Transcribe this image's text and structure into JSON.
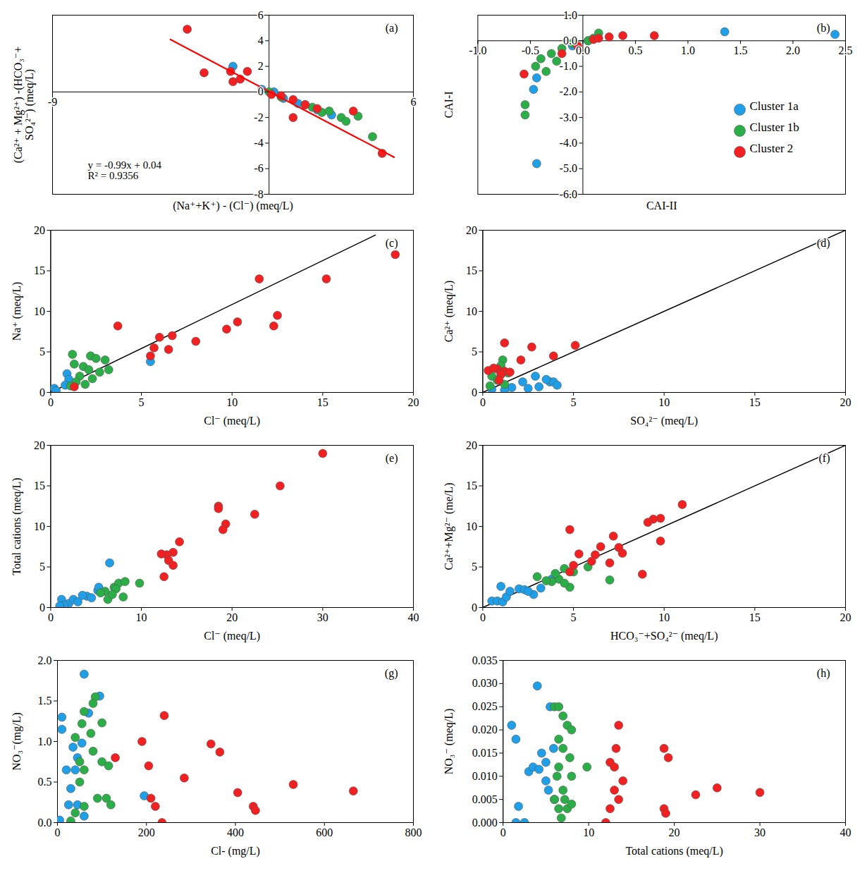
{
  "chart_data": [
    {
      "type": "scatter",
      "title": "(a)",
      "x_label": "(Na⁺+K⁺) - (Cl⁻) (meq/L)",
      "y_label": "(Ca²⁺ + Mg²⁺) -(HCO₃⁻+ SO₄²⁻) (meq/L)",
      "xlim": [
        -9,
        6
      ],
      "xticks": [
        -9,
        6
      ],
      "ylim": [
        -8,
        6
      ],
      "yticks": [
        -8,
        -6,
        -4,
        -2,
        0,
        2,
        4,
        6
      ],
      "equation": [
        "y = -0.99x + 0.04",
        "R² = 0.9356"
      ],
      "trendline": {
        "color": "#ff0000",
        "x": [
          -4.1,
          5.2
        ],
        "y": [
          4.1,
          -5.11
        ]
      },
      "series": [
        {
          "name": "Cluster 1a",
          "color": "#1e9fe8",
          "x": [
            -1.5,
            -0.3,
            0.2,
            0.6,
            1.2,
            2.0,
            2.6
          ],
          "y": [
            2.0,
            0.2,
            0.0,
            -0.5,
            -0.9,
            -1.4,
            -1.8
          ]
        },
        {
          "name": "Cluster 1b",
          "color": "#2bae48",
          "x": [
            0.0,
            0.5,
            1.5,
            1.8,
            2.2,
            2.5,
            3.0,
            3.2,
            3.7,
            4.3
          ],
          "y": [
            0.0,
            -0.4,
            -1.0,
            -1.2,
            -1.6,
            -1.5,
            -2.0,
            -2.3,
            -1.9,
            -3.5
          ]
        },
        {
          "name": "Cluster 2",
          "color": "#f22020",
          "x": [
            -3.4,
            -2.7,
            -1.6,
            -1.5,
            -1.2,
            -0.9,
            0.1,
            0.5,
            1.0,
            1.5,
            2.0,
            1.0,
            3.5,
            4.7
          ],
          "y": [
            4.9,
            1.5,
            1.6,
            0.8,
            1.0,
            1.6,
            -0.2,
            -0.3,
            -0.6,
            -1.0,
            -1.3,
            -2.0,
            -1.5,
            -4.8
          ]
        }
      ]
    },
    {
      "type": "scatter",
      "title": "(b)",
      "legend": "bottom-right",
      "x_label": "CAI-II",
      "y_label": "CAI-I",
      "xlim": [
        -1,
        2.5
      ],
      "xticks": [
        {
          "value": -1,
          "label": "-1.0"
        },
        {
          "value": -0.5,
          "label": "-0.5"
        },
        {
          "value": 0,
          "label": "0.0"
        },
        {
          "value": 0.5,
          "label": "0.5"
        },
        {
          "value": 1,
          "label": "1.0"
        },
        {
          "value": 1.5,
          "label": "1.5"
        },
        {
          "value": 2,
          "label": "2.0"
        },
        {
          "value": 2.5,
          "label": "2.5"
        }
      ],
      "ylim": [
        -6,
        1
      ],
      "yticks": [
        {
          "value": 1,
          "label": "1.0"
        },
        {
          "value": 0,
          "label": "0.0"
        },
        {
          "value": -1,
          "label": "-1.0"
        },
        {
          "value": -2,
          "label": "-2.0"
        },
        {
          "value": -3,
          "label": "-3.0"
        },
        {
          "value": -4,
          "label": "-4.0"
        },
        {
          "value": -5,
          "label": "-5.0"
        },
        {
          "value": -6,
          "label": "-6.0"
        }
      ],
      "series": [
        {
          "name": "Cluster 1a",
          "color": "#1e9fe8",
          "x": [
            1.35,
            2.4,
            -0.47,
            -0.44,
            -0.44,
            -0.1,
            0.05
          ],
          "y": [
            0.35,
            0.25,
            -1.9,
            -1.45,
            -4.8,
            -0.2,
            0.0
          ]
        },
        {
          "name": "Cluster 1b",
          "color": "#2bae48",
          "x": [
            -0.55,
            -0.55,
            -0.45,
            -0.4,
            -0.3,
            -0.2,
            -0.1,
            0.05,
            0.1,
            0.15,
            -0.35,
            -0.25
          ],
          "y": [
            -2.9,
            -2.5,
            -1.0,
            -0.7,
            -0.5,
            -0.3,
            -0.1,
            0.0,
            0.1,
            0.3,
            -1.2,
            -0.8
          ]
        },
        {
          "name": "Cluster 2",
          "color": "#f22020",
          "x": [
            -0.56,
            -0.2,
            -0.05,
            0.1,
            0.15,
            0.25,
            0.38,
            0.68
          ],
          "y": [
            -1.3,
            -0.5,
            -0.2,
            0.05,
            0.1,
            0.15,
            0.2,
            0.2
          ]
        }
      ]
    },
    {
      "type": "scatter",
      "title": "(c)",
      "x_label": "Cl⁻ (meq/L)",
      "y_label": "Na⁺ (meq/L)",
      "xlim": [
        0,
        20
      ],
      "xticks": [
        0,
        5,
        10,
        15,
        20
      ],
      "ylim": [
        0,
        20
      ],
      "yticks": [
        0,
        5,
        10,
        15,
        20
      ],
      "reference_line": {
        "x": [
          0,
          17.9
        ],
        "y": [
          0,
          19.4
        ]
      },
      "series": [
        {
          "name": "Cluster 1a",
          "color": "#1e9fe8",
          "x": [
            5.5,
            0.9,
            0.2,
            0.3,
            1.0,
            0.8
          ],
          "y": [
            3.8,
            2.3,
            0.5,
            0.2,
            1.6,
            0.9
          ]
        },
        {
          "name": "Cluster 1b",
          "color": "#2bae48",
          "x": [
            1.2,
            1.3,
            2.2,
            2.5,
            3.0,
            3.2,
            1.8,
            2.1,
            1.6,
            2.3,
            1.4,
            1.1,
            1.9,
            2.7
          ],
          "y": [
            4.7,
            3.5,
            4.5,
            4.2,
            4.0,
            2.8,
            3.2,
            2.8,
            2.0,
            1.7,
            1.3,
            0.8,
            1.0,
            2.5
          ]
        },
        {
          "name": "Cluster 2",
          "color": "#f22020",
          "x": [
            19,
            15.2,
            11.5,
            12.5,
            12.3,
            10.3,
            9.7,
            8,
            6.7,
            6,
            6.5,
            5.7,
            5.5,
            3.7,
            1.3
          ],
          "y": [
            17,
            14,
            14,
            9.5,
            8.2,
            8.7,
            7.8,
            6.3,
            7,
            6.8,
            5.3,
            5.5,
            4.5,
            8.2,
            0.7
          ]
        }
      ]
    },
    {
      "type": "scatter",
      "title": "(d)",
      "x_label": "SO₄²⁻ (meq/L)",
      "y_label": "Ca²⁺ (meq/L)",
      "xlim": [
        0,
        20
      ],
      "xticks": [
        0,
        5,
        10,
        15,
        20
      ],
      "ylim": [
        0,
        20
      ],
      "yticks": [
        0,
        5,
        10,
        15,
        20
      ],
      "reference_line": {
        "x": [
          0,
          20
        ],
        "y": [
          0,
          20
        ]
      },
      "series": [
        {
          "name": "Cluster 1a",
          "color": "#1e9fe8",
          "x": [
            1.6,
            2.2,
            2.9,
            3.1,
            3.7,
            3.9,
            4.1,
            2.5,
            1.2,
            0.5,
            3.5
          ],
          "y": [
            0.6,
            1.3,
            2.0,
            0.7,
            1.3,
            1.3,
            0.9,
            0.5,
            0.3,
            0.4,
            1.6
          ]
        },
        {
          "name": "Cluster 1b",
          "color": "#2bae48",
          "x": [
            1.1,
            1.0,
            0.5,
            0.8,
            1.2,
            0.4,
            1.4
          ],
          "y": [
            4.0,
            3.3,
            2.0,
            1.5,
            1.0,
            0.8,
            2.4
          ]
        },
        {
          "name": "Cluster 2",
          "color": "#f22020",
          "x": [
            1.2,
            2.7,
            3.9,
            5.1,
            0.3,
            0.8,
            1.2,
            1.0,
            1.5,
            2.1,
            0.6,
            0.9
          ],
          "y": [
            6.1,
            5.6,
            4.5,
            5.8,
            2.7,
            2.9,
            2.6,
            2.2,
            2.5,
            4.0,
            3.0,
            1.5
          ]
        }
      ]
    },
    {
      "type": "scatter",
      "title": "(e)",
      "x_label": "Cl⁻ (meq/L)",
      "y_label": "Total cations (meq/L)",
      "xlim": [
        0,
        40
      ],
      "xticks": [
        0,
        10,
        20,
        30,
        40
      ],
      "ylim": [
        0,
        20
      ],
      "yticks": [
        0,
        5,
        10,
        15,
        20
      ],
      "series": [
        {
          "name": "Cluster 1a",
          "color": "#1e9fe8",
          "x": [
            6.5,
            1.2,
            2.0,
            1.5,
            2.5,
            3.0,
            4.0,
            4.5,
            5.2,
            5.3,
            3.5,
            1.0
          ],
          "y": [
            5.5,
            1.0,
            0.5,
            0.3,
            1.0,
            0.7,
            1.4,
            1.2,
            2.1,
            2.5,
            1.5,
            0.2
          ]
        },
        {
          "name": "Cluster 1b",
          "color": "#2bae48",
          "x": [
            6.0,
            7.0,
            7.5,
            8.2,
            9.8,
            8.0,
            6.3,
            5.5,
            7.2,
            6.8
          ],
          "y": [
            2.0,
            2.5,
            3.0,
            3.2,
            3.0,
            1.3,
            1.0,
            1.8,
            2.3,
            1.6
          ]
        },
        {
          "name": "Cluster 2",
          "color": "#f22020",
          "x": [
            30,
            25.3,
            22.5,
            18.5,
            18.5,
            19.3,
            19.0,
            14.2,
            13.5,
            12.8,
            12.2,
            13.0,
            13.5,
            12.5
          ],
          "y": [
            19,
            15,
            11.5,
            12.5,
            12.2,
            10.3,
            9.6,
            8.1,
            6.8,
            6.5,
            6.6,
            5.8,
            5.2,
            3.8
          ]
        }
      ]
    },
    {
      "type": "scatter",
      "title": "(f)",
      "x_label": "HCO₃⁻+SO₄²⁻ (meq/L)",
      "y_label": "Ca²⁺+Mg²⁻ (me/L)",
      "xlim": [
        0,
        20
      ],
      "xticks": [
        0,
        5,
        10,
        15,
        20
      ],
      "ylim": [
        0,
        20
      ],
      "yticks": [
        0,
        5,
        10,
        15,
        20
      ],
      "reference_line": {
        "x": [
          0,
          20
        ],
        "y": [
          0,
          20
        ]
      },
      "series": [
        {
          "name": "Cluster 1a",
          "color": "#1e9fe8",
          "x": [
            0.5,
            0.8,
            1.1,
            1.3,
            1.5,
            2.0,
            2.3,
            2.8,
            3.2,
            1.0,
            2.5,
            3.8
          ],
          "y": [
            0.8,
            0.8,
            0.7,
            1.3,
            2.0,
            2.3,
            2.2,
            1.6,
            2.4,
            2.6,
            2.0,
            3.5
          ]
        },
        {
          "name": "Cluster 1b",
          "color": "#2bae48",
          "x": [
            7.0,
            5.8,
            4.8,
            4.5,
            5.0,
            4.2,
            3.8,
            4.5,
            3.5,
            3.0,
            4.0
          ],
          "y": [
            3.4,
            5.0,
            2.5,
            4.8,
            4.4,
            3.5,
            3.2,
            3.0,
            3.3,
            3.8,
            4.2
          ]
        },
        {
          "name": "Cluster 2",
          "color": "#f22020",
          "x": [
            11.0,
            9.8,
            9.4,
            9.1,
            9.8,
            8.8,
            4.8,
            7.2,
            7.5,
            7.7,
            6.5,
            7.0,
            6.2,
            5.3,
            6.0,
            5.0,
            4.8
          ],
          "y": [
            12.7,
            11.0,
            10.9,
            10.5,
            8.2,
            4.1,
            9.6,
            8.8,
            7.4,
            6.7,
            7.5,
            5.5,
            6.5,
            6.6,
            5.7,
            5.2,
            4.4
          ]
        }
      ]
    },
    {
      "type": "scatter",
      "title": "(g)",
      "x_label": "Cl- (mg/L)",
      "y_label": "NO₃⁻(mg/L)",
      "xlim": [
        0,
        800
      ],
      "xticks": [
        0,
        200,
        400,
        600,
        800
      ],
      "ylim": [
        0,
        2
      ],
      "yticks": [
        {
          "value": 0,
          "label": "0.0"
        },
        {
          "value": 0.5,
          "label": "0.5"
        },
        {
          "value": 1,
          "label": "1.0"
        },
        {
          "value": 1.5,
          "label": "1.5"
        },
        {
          "value": 2,
          "label": "2.0"
        }
      ],
      "series": [
        {
          "name": "Cluster 1a",
          "color": "#1e9fe8",
          "x": [
            60,
            95,
            70,
            10,
            10,
            35,
            45,
            40,
            20,
            25,
            45,
            60,
            5,
            30,
            55,
            195
          ],
          "y": [
            1.83,
            1.56,
            1.35,
            1.3,
            1.15,
            0.93,
            0.8,
            0.65,
            0.65,
            0.22,
            0.22,
            0.08,
            0.03,
            0.42,
            0.98,
            0.33
          ]
        },
        {
          "name": "Cluster 1b",
          "color": "#2bae48",
          "x": [
            85,
            80,
            60,
            55,
            100,
            75,
            40,
            80,
            50,
            60,
            100,
            115,
            90,
            110,
            120,
            60,
            40,
            30,
            50
          ],
          "y": [
            1.55,
            1.47,
            1.37,
            1.22,
            1.23,
            1.1,
            1.05,
            0.88,
            0.75,
            0.65,
            0.75,
            0.7,
            0.3,
            0.3,
            0.22,
            0.2,
            0.12,
            0.02,
            0.5
          ]
        },
        {
          "name": "Cluster 2",
          "color": "#f22020",
          "x": [
            130,
            190,
            240,
            205,
            210,
            220,
            235,
            285,
            345,
            365,
            405,
            440,
            445,
            530,
            665
          ],
          "y": [
            0.8,
            1.0,
            1.32,
            0.7,
            0.3,
            0.2,
            0.0,
            0.55,
            0.97,
            0.87,
            0.37,
            0.2,
            0.15,
            0.47,
            0.39
          ]
        }
      ]
    },
    {
      "type": "scatter",
      "title": "(h)",
      "x_label": "Total cations (meq/L)",
      "y_label": "NO₃⁻ (meq/L)",
      "xlim": [
        0,
        40
      ],
      "xticks": [
        0,
        10,
        20,
        30,
        40
      ],
      "ylim": [
        0,
        0.035
      ],
      "yticks": [
        {
          "value": 0,
          "label": "0.000"
        },
        {
          "value": 0.005,
          "label": "0.005"
        },
        {
          "value": 0.01,
          "label": "0.010"
        },
        {
          "value": 0.015,
          "label": "0.015"
        },
        {
          "value": 0.02,
          "label": "0.020"
        },
        {
          "value": 0.025,
          "label": "0.025"
        },
        {
          "value": 0.03,
          "label": "0.030"
        },
        {
          "value": 0.035,
          "label": "0.035"
        }
      ],
      "series": [
        {
          "name": "Cluster 1a",
          "color": "#1e9fe8",
          "x": [
            1.0,
            1.5,
            4.0,
            3.0,
            3.5,
            4.5,
            5.5,
            5.0,
            5.0,
            5.3,
            6.0,
            1.5,
            2.5,
            1.8,
            4.2,
            5.9
          ],
          "y": [
            0.021,
            0.018,
            0.0295,
            0.011,
            0.012,
            0.015,
            0.025,
            0.013,
            0.009,
            0.007,
            0.005,
            0.0,
            0.0,
            0.0035,
            0.0115,
            0.016
          ]
        },
        {
          "name": "Cluster 1b",
          "color": "#2bae48",
          "x": [
            6.0,
            6.5,
            7.0,
            7.5,
            8.0,
            6.5,
            7.0,
            7.8,
            6.5,
            6.3,
            8.0,
            9.8,
            6.0,
            7.0,
            7.2,
            6.5,
            7.5,
            8.0,
            6.8
          ],
          "y": [
            0.025,
            0.025,
            0.023,
            0.021,
            0.02,
            0.018,
            0.016,
            0.014,
            0.012,
            0.01,
            0.01,
            0.012,
            0.005,
            0.007,
            0.005,
            0.003,
            0.003,
            0.004,
            0.001
          ]
        },
        {
          "name": "Cluster 2",
          "color": "#f22020",
          "x": [
            13.5,
            13.2,
            12.5,
            13.0,
            14.0,
            13.0,
            13.5,
            12.5,
            12.0,
            18.8,
            19.3,
            18.8,
            19.0,
            22.5,
            25.0,
            30.0
          ],
          "y": [
            0.021,
            0.016,
            0.013,
            0.012,
            0.009,
            0.007,
            0.005,
            0.003,
            0.0,
            0.016,
            0.014,
            0.003,
            0.002,
            0.006,
            0.0075,
            0.0065
          ]
        }
      ]
    }
  ]
}
